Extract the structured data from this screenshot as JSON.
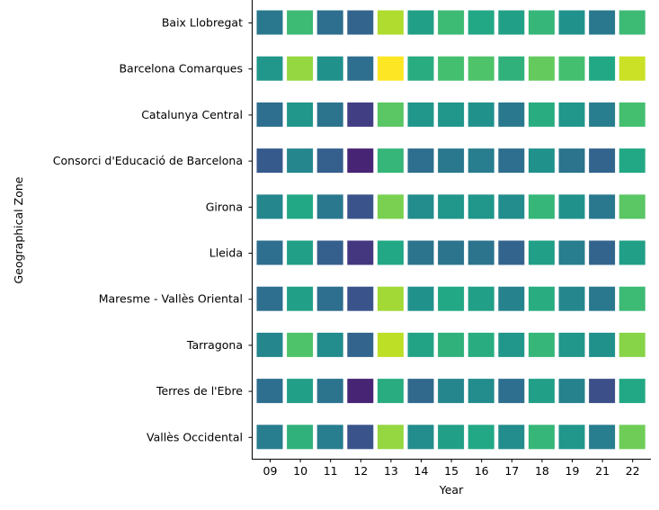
{
  "chart_data": {
    "type": "heatmap",
    "title": "",
    "xlabel": "Year",
    "ylabel": "Geographical Zone",
    "x": [
      "09",
      "10",
      "11",
      "12",
      "13",
      "14",
      "15",
      "16",
      "17",
      "18",
      "19",
      "21",
      "22"
    ],
    "y": [
      "Baix Llobregat",
      "Barcelona Comarques",
      "Catalunya Central",
      "Consorci d'Educació de Barcelona",
      "Girona",
      "Lleida",
      "Maresme - Vallès Oriental",
      "Tarragona",
      "Terres de l'Ebre",
      "Vallès Occidental"
    ],
    "colormap": "viridis",
    "value_range": [
      0,
      1
    ],
    "values": [
      [
        0.4,
        0.68,
        0.36,
        0.32,
        0.88,
        0.56,
        0.68,
        0.6,
        0.56,
        0.66,
        0.5,
        0.4,
        0.68
      ],
      [
        0.52,
        0.84,
        0.5,
        0.36,
        1.0,
        0.62,
        0.7,
        0.72,
        0.64,
        0.76,
        0.7,
        0.6,
        0.92
      ],
      [
        0.36,
        0.52,
        0.38,
        0.18,
        0.74,
        0.52,
        0.52,
        0.5,
        0.4,
        0.62,
        0.52,
        0.42,
        0.7
      ],
      [
        0.28,
        0.46,
        0.3,
        0.1,
        0.66,
        0.36,
        0.4,
        0.42,
        0.36,
        0.5,
        0.38,
        0.32,
        0.6
      ],
      [
        0.46,
        0.6,
        0.4,
        0.26,
        0.8,
        0.48,
        0.52,
        0.52,
        0.48,
        0.66,
        0.5,
        0.4,
        0.74
      ],
      [
        0.36,
        0.56,
        0.3,
        0.16,
        0.6,
        0.38,
        0.38,
        0.38,
        0.32,
        0.56,
        0.42,
        0.32,
        0.56
      ],
      [
        0.36,
        0.56,
        0.36,
        0.26,
        0.86,
        0.5,
        0.6,
        0.56,
        0.44,
        0.62,
        0.46,
        0.4,
        0.68
      ],
      [
        0.46,
        0.72,
        0.48,
        0.32,
        0.9,
        0.58,
        0.64,
        0.62,
        0.52,
        0.66,
        0.52,
        0.5,
        0.82
      ],
      [
        0.36,
        0.56,
        0.38,
        0.1,
        0.62,
        0.34,
        0.46,
        0.48,
        0.36,
        0.56,
        0.44,
        0.24,
        0.6
      ],
      [
        0.42,
        0.64,
        0.42,
        0.26,
        0.84,
        0.48,
        0.56,
        0.6,
        0.48,
        0.66,
        0.52,
        0.42,
        0.78
      ]
    ],
    "grid": false,
    "legend": "none"
  }
}
